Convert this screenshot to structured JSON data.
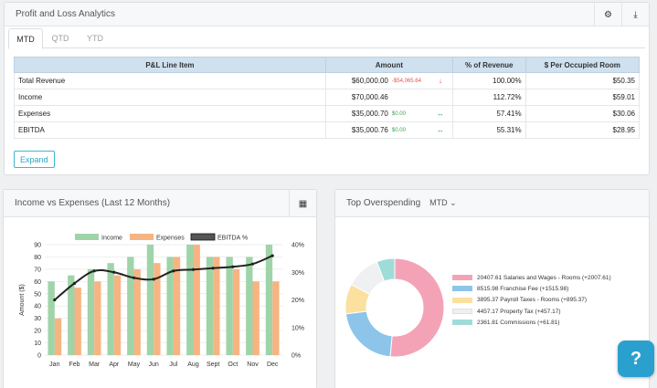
{
  "pl_panel": {
    "title": "Profit and Loss Analytics",
    "settings_icon": "⚙",
    "download_icon": "⤓",
    "tabs": [
      {
        "label": "MTD"
      },
      {
        "label": "QTD"
      },
      {
        "label": "YTD"
      }
    ],
    "columns": [
      "P&L Line Item",
      "Amount",
      "% of Revenue",
      "$ Per Occupied Room"
    ],
    "rows": [
      {
        "item": "Total Revenue",
        "amount": "$60,000.00",
        "delta": "-$54,065.64",
        "delta_sign": "neg",
        "arrow": "↓",
        "pct": "100.00%",
        "per_room": "$50.35"
      },
      {
        "item": "Income",
        "amount": "$70,000.46",
        "delta": "",
        "delta_sign": "",
        "arrow": "",
        "pct": "112.72%",
        "per_room": "$59.01"
      },
      {
        "item": "Expenses",
        "amount": "$35,000.70",
        "delta": "$0.00",
        "delta_sign": "pos",
        "arrow": "↔",
        "pct": "57.41%",
        "per_room": "$30.06"
      },
      {
        "item": "EBITDA",
        "amount": "$35,000.76",
        "delta": "$0.00",
        "delta_sign": "pos",
        "arrow": "↔",
        "pct": "55.31%",
        "per_room": "$28.95"
      }
    ],
    "expand_label": "Expand"
  },
  "ive_panel": {
    "title": "Income vs Expenses (Last 12 Months)",
    "table_icon": "▦"
  },
  "over_panel": {
    "title": "Top Overspending",
    "period": "MTD ⌄"
  },
  "help_label": "?",
  "chart_data": [
    {
      "type": "bar",
      "categories": [
        "Jan",
        "Feb",
        "Mar",
        "Apr",
        "May",
        "Jun",
        "Jul",
        "Aug",
        "Sept",
        "Oct",
        "Nov",
        "Dec"
      ],
      "series": [
        {
          "name": "Income",
          "type": "bar",
          "color": "#9fd4a9",
          "values": [
            60,
            65,
            70,
            75,
            80,
            90,
            80,
            90,
            80,
            80,
            80,
            90
          ]
        },
        {
          "name": "Expenses",
          "type": "bar",
          "color": "#f6b482",
          "values": [
            30,
            55,
            60,
            65,
            70,
            75,
            80,
            90,
            80,
            70,
            60,
            60
          ]
        },
        {
          "name": "EBITDA %",
          "type": "line",
          "axis": "right",
          "color": "#222222",
          "values": [
            20,
            26,
            30.5,
            30,
            28,
            27.5,
            30.5,
            31,
            31.5,
            32,
            33,
            36
          ]
        }
      ],
      "ylabel": "Amount ($)",
      "ylim": [
        0,
        90
      ],
      "yticks": [
        "0",
        "10",
        "20",
        "30",
        "40",
        "50",
        "60",
        "70",
        "80",
        "90"
      ],
      "y2lim": [
        0,
        40
      ],
      "y2ticks": [
        "0%",
        "10%",
        "20%",
        "30%",
        "40%"
      ],
      "legend": "top",
      "grid": true
    },
    {
      "type": "pie",
      "donut": true,
      "slices": [
        {
          "label": "20407.61 Salaries and Wages - Rooms (+2007.61)",
          "value": 20407.61,
          "color": "#f4a3b7"
        },
        {
          "label": "8515.98 Franchise Fee (+1515.98)",
          "value": 8515.98,
          "color": "#8cc4ea"
        },
        {
          "label": "3895.37 Payroll Taxes - Rooms (+895.37)",
          "value": 3895.37,
          "color": "#fbe0a0"
        },
        {
          "label": "4457.17 Property Tax (+457.17)",
          "value": 4457.17,
          "color": "#eef0f2"
        },
        {
          "label": "2361.81 Commissions (+61.81)",
          "value": 2361.81,
          "color": "#9fdcd8"
        }
      ],
      "legend": "right"
    }
  ]
}
